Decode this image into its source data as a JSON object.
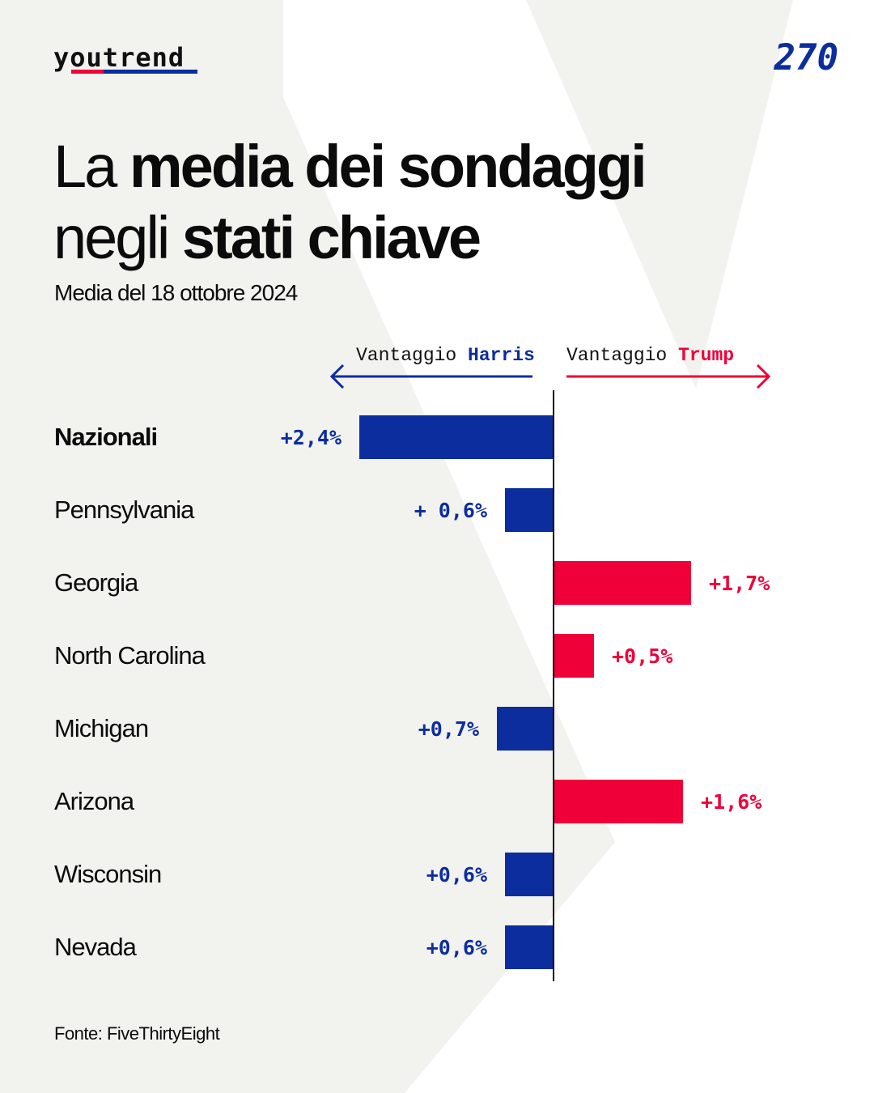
{
  "brand": {
    "logo": "youtrend",
    "badge": "270"
  },
  "header": {
    "title_a_light": "La ",
    "title_a_bold": "media dei sondaggi",
    "title_b_light": "negli ",
    "title_b_bold": "stati chiave",
    "subtitle": "Media del 18 ottobre 2024"
  },
  "axis": {
    "left_prefix": "Vantaggio ",
    "left_name": "Harris",
    "right_prefix": "Vantaggio ",
    "right_name": "Trump"
  },
  "colors": {
    "harris": "#0b2d9e",
    "trump": "#ef0039",
    "background": "#f2f2ef"
  },
  "chart_data": {
    "type": "bar",
    "orientation": "horizontal-diverging",
    "categories": [
      "Nazionali",
      "Pennsylvania",
      "Georgia",
      "North Carolina",
      "Michigan",
      "Arizona",
      "Wisconsin",
      "Nevada"
    ],
    "leader": [
      "Harris",
      "Harris",
      "Trump",
      "Trump",
      "Harris",
      "Trump",
      "Harris",
      "Harris"
    ],
    "values": [
      2.4,
      0.6,
      1.7,
      0.5,
      0.7,
      1.6,
      0.6,
      0.6
    ],
    "labels": [
      "+2,4%",
      "+ 0,6%",
      "+1,7%",
      "+0,5%",
      "+0,7%",
      "+1,6%",
      "+0,6%",
      "+0,6%"
    ]
  },
  "footer": {
    "source": "Fonte: FiveThirtyEight"
  }
}
